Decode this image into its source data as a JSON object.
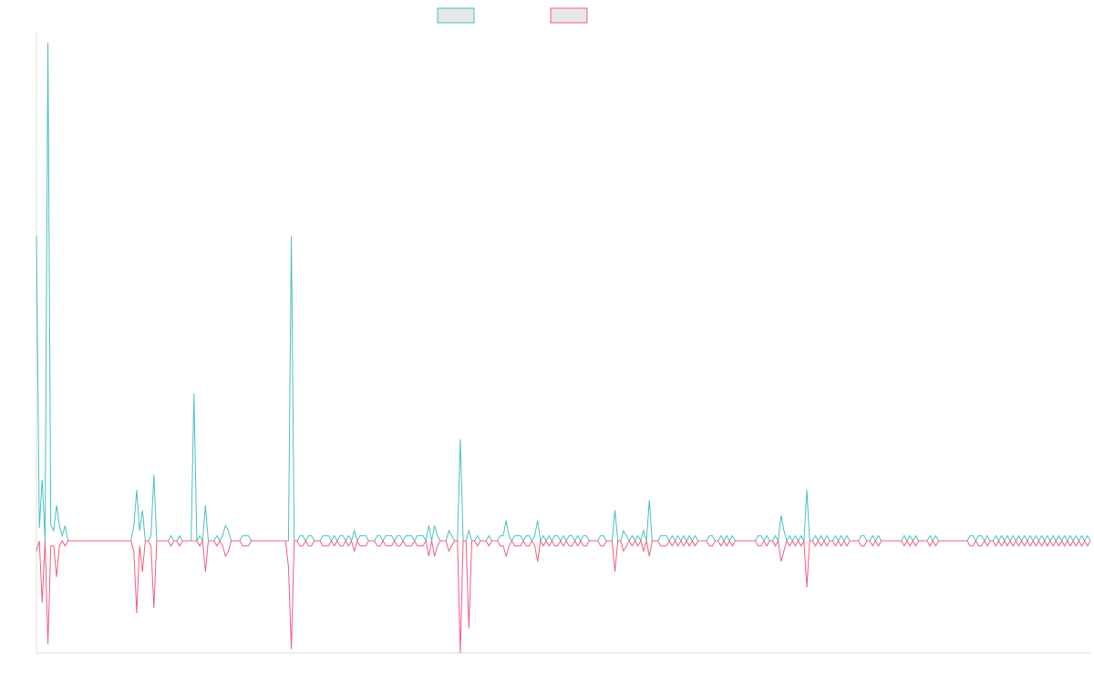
{
  "chart_data": {
    "type": "line",
    "title": "",
    "xlabel": "",
    "ylabel": "",
    "ylim": [
      -1,
      1
    ],
    "grid": false,
    "legend_placement": "top-center",
    "series": [
      {
        "color": "#4bc0c0",
        "values": [
          0.6,
          0.025,
          0.12,
          0.0,
          0.98,
          0.03,
          0.02,
          0.07,
          0.03,
          0.01,
          0.03,
          0.0,
          0,
          0,
          0,
          0,
          0,
          0,
          0,
          0,
          0,
          0,
          0,
          0,
          0,
          0,
          0,
          0,
          0,
          0,
          0,
          0,
          0,
          0,
          0.03,
          0.1,
          0.02,
          0.06,
          0.0,
          0.0,
          0.01,
          0.13,
          0.0,
          0,
          0,
          0,
          0,
          0.01,
          0,
          0.0,
          0.01,
          0,
          0,
          0,
          0,
          0.29,
          0,
          0.01,
          0.0,
          0.07,
          0.0,
          0.0,
          0.0,
          0.01,
          0.0,
          0.01,
          0.03,
          0.02,
          0.0,
          0,
          0,
          0,
          0.01,
          0.01,
          0.01,
          0,
          0,
          0,
          0,
          0,
          0,
          0,
          0,
          0,
          0,
          0,
          0,
          0,
          0,
          0.6,
          0,
          0.0,
          0.01,
          0.01,
          0,
          0.01,
          0.01,
          0,
          0,
          0,
          0.01,
          0.01,
          0.01,
          0.0,
          0.01,
          0.0,
          0.01,
          0.01,
          0.0,
          0.01,
          0.0,
          0.02,
          0.0,
          0.01,
          0.01,
          0.01,
          0.0,
          0.0,
          0.0,
          0.01,
          0.01,
          0.0,
          0.01,
          0.01,
          0.01,
          0.0,
          0.01,
          0.01,
          0.0,
          0.01,
          0.01,
          0.01,
          0.0,
          0.01,
          0.01,
          0.01,
          0.0,
          0.03,
          0.0,
          0.03,
          0.01,
          0.0,
          0,
          0,
          0.02,
          0.01,
          0.0,
          0.0,
          0.2,
          0,
          0.0,
          0.02,
          0.0,
          0,
          0.01,
          0,
          0,
          0,
          0.01,
          0,
          0,
          0,
          0.01,
          0.01,
          0.04,
          0.01,
          0.0,
          0.01,
          0.01,
          0.01,
          0.0,
          0.01,
          0.01,
          0.0,
          0.01,
          0.04,
          0.0,
          0.01,
          0.0,
          0.01,
          0.0,
          0.01,
          0.01,
          0.0,
          0.01,
          0.0,
          0.01,
          0.01,
          0.0,
          0.01,
          0.0,
          0.01,
          0.01,
          0.0,
          0,
          0,
          0,
          0.01,
          0.01,
          0,
          0,
          0,
          0.06,
          0.0,
          0.0,
          0.02,
          0.01,
          0.0,
          0.01,
          0.0,
          0.01,
          0.0,
          0.02,
          0.0,
          0.08,
          0.0,
          0,
          0,
          0.01,
          0.01,
          0.01,
          0.0,
          0.01,
          0.0,
          0.01,
          0.0,
          0.01,
          0.0,
          0.01,
          0.0,
          0.01,
          0,
          0,
          0,
          0,
          0.01,
          0.01,
          0,
          0,
          0.01,
          0.0,
          0.01,
          0.0,
          0.01,
          0,
          0,
          0,
          0,
          0,
          0,
          0,
          0,
          0.01,
          0.01,
          0,
          0.01,
          0,
          0,
          0.01,
          0.0,
          0.05,
          0.02,
          0.0,
          0.01,
          0.0,
          0.01,
          0.0,
          0.01,
          0.0,
          0.1,
          0.0,
          0,
          0.01,
          0.0,
          0.01,
          0.0,
          0.01,
          0.0,
          0,
          0.01,
          0.0,
          0.01,
          0.0,
          0.01,
          0,
          0,
          0,
          0,
          0.01,
          0.01,
          0,
          0,
          0.01,
          0.0,
          0.01,
          0,
          0,
          0,
          0,
          0,
          0,
          0,
          0,
          0.01,
          0.0,
          0.01,
          0.0,
          0.01,
          0,
          0,
          0,
          0,
          0.01,
          0,
          0.01,
          0.0,
          0,
          0,
          0,
          0,
          0,
          0,
          0,
          0,
          0,
          0,
          0.01,
          0.01,
          0.0,
          0.01,
          0.01,
          0.0,
          0.01,
          0,
          0,
          0.01,
          0,
          0.01,
          0.0,
          0.01,
          0.0,
          0.01,
          0.0,
          0.01,
          0.0,
          0.01,
          0.0,
          0.01,
          0.0,
          0.01,
          0.0,
          0.01,
          0.0,
          0.01,
          0.0,
          0.01,
          0.0,
          0.01,
          0.0,
          0.01,
          0.0,
          0.01,
          0.0,
          0.01,
          0.0,
          0.01,
          0.0,
          0.01,
          0.0
        ]
      },
      {
        "color": "#f06080",
        "values": [
          -0.02,
          0.0,
          -0.12,
          0.0,
          -0.2,
          -0.01,
          -0.01,
          -0.07,
          -0.01,
          0.0,
          -0.01,
          0.0,
          0,
          0,
          0,
          0,
          0,
          0,
          0,
          0,
          0,
          0,
          0,
          0,
          0,
          0,
          0,
          0,
          0,
          0,
          0,
          0,
          0,
          0,
          -0.02,
          -0.14,
          -0.01,
          -0.06,
          0.0,
          0.0,
          -0.01,
          -0.13,
          0.0,
          0,
          0,
          0,
          0,
          -0.01,
          0,
          0.0,
          -0.01,
          0,
          0,
          0,
          0,
          0.0,
          0,
          -0.01,
          0.0,
          -0.06,
          0.0,
          0.0,
          0.0,
          -0.01,
          0.0,
          -0.01,
          -0.03,
          -0.02,
          0.0,
          0,
          0,
          0,
          -0.01,
          -0.01,
          -0.01,
          0,
          0,
          0,
          0,
          0,
          0,
          0,
          0,
          0,
          0,
          0,
          0,
          0,
          -0.05,
          -0.21,
          0,
          0.0,
          -0.01,
          -0.01,
          0,
          -0.01,
          -0.01,
          0,
          0,
          0,
          -0.01,
          -0.01,
          -0.01,
          0.0,
          -0.01,
          0.0,
          -0.01,
          -0.01,
          0.0,
          -0.01,
          0.0,
          -0.02,
          0.0,
          -0.01,
          -0.01,
          -0.01,
          0.0,
          0.0,
          0.0,
          -0.01,
          -0.01,
          0.0,
          -0.01,
          -0.01,
          -0.01,
          0.0,
          -0.01,
          -0.01,
          0.0,
          -0.01,
          -0.01,
          -0.01,
          0.0,
          -0.01,
          -0.01,
          -0.01,
          0.0,
          -0.03,
          0.0,
          -0.03,
          -0.01,
          0.0,
          0,
          0,
          -0.02,
          -0.01,
          0.0,
          0.0,
          -0.22,
          0,
          0.0,
          -0.17,
          0.0,
          0,
          -0.01,
          0,
          0,
          0,
          -0.01,
          0,
          0,
          0,
          -0.01,
          -0.01,
          -0.03,
          -0.01,
          0.0,
          -0.01,
          -0.01,
          -0.01,
          0.0,
          -0.01,
          -0.01,
          0.0,
          -0.01,
          -0.04,
          0.0,
          -0.01,
          0.0,
          -0.01,
          0.0,
          -0.01,
          -0.01,
          0.0,
          -0.01,
          0.0,
          -0.01,
          -0.01,
          0.0,
          -0.01,
          0.0,
          -0.01,
          -0.01,
          0.0,
          0,
          0,
          0,
          -0.01,
          -0.01,
          0,
          0,
          0,
          -0.06,
          0.0,
          0.0,
          -0.02,
          -0.01,
          0.0,
          -0.01,
          0.0,
          -0.01,
          0.0,
          -0.02,
          0.0,
          -0.03,
          0.0,
          0,
          0,
          -0.01,
          -0.01,
          -0.01,
          0.0,
          -0.01,
          0.0,
          -0.01,
          0.0,
          -0.01,
          0.0,
          -0.01,
          0.0,
          -0.01,
          0,
          0,
          0,
          0,
          -0.01,
          -0.01,
          0,
          0,
          -0.01,
          0.0,
          -0.01,
          0.0,
          -0.01,
          0,
          0,
          0,
          0,
          0,
          0,
          0,
          0,
          -0.01,
          -0.01,
          0,
          -0.01,
          0,
          0,
          -0.01,
          0.0,
          -0.04,
          -0.02,
          0.0,
          -0.01,
          0.0,
          -0.01,
          0.0,
          -0.01,
          0.0,
          -0.09,
          0.0,
          0,
          -0.01,
          0.0,
          -0.01,
          0.0,
          -0.01,
          0.0,
          0,
          -0.01,
          0.0,
          -0.01,
          0.0,
          -0.01,
          0,
          0,
          0,
          0,
          -0.01,
          -0.01,
          0,
          0,
          -0.01,
          0.0,
          -0.01,
          0,
          0,
          0,
          0,
          0,
          0,
          0,
          0,
          -0.01,
          0.0,
          -0.01,
          0.0,
          -0.01,
          0,
          0,
          0,
          0,
          -0.01,
          0,
          -0.01,
          0.0,
          0,
          0,
          0,
          0,
          0,
          0,
          0,
          0,
          0,
          0,
          -0.01,
          -0.01,
          0.0,
          -0.01,
          -0.01,
          0.0,
          -0.01,
          0,
          0,
          -0.01,
          0,
          -0.01,
          0.0,
          -0.01,
          0.0,
          -0.01,
          0.0,
          -0.01,
          0.0,
          -0.01,
          0.0,
          -0.01,
          0.0,
          -0.01,
          0.0,
          -0.01,
          0.0,
          -0.01,
          0.0,
          -0.01,
          0.0,
          -0.01,
          0.0,
          -0.01,
          0.0,
          -0.01,
          0.0,
          -0.01,
          0.0,
          -0.01,
          0.0,
          -0.01,
          0.0
        ]
      }
    ]
  }
}
